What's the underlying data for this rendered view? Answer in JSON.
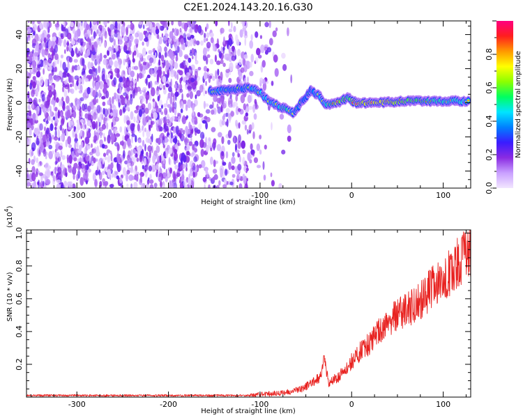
{
  "title": "C2E1.2024.143.20.16.G30",
  "chart_data": [
    {
      "type": "heatmap",
      "title": "C2E1.2024.143.20.16.G30",
      "xlabel": "Height of straight line (km)",
      "ylabel": "Frequency (Hz)",
      "xlim": [
        -355,
        130
      ],
      "ylim": [
        -50,
        48
      ],
      "x_ticks": [
        "-300",
        "-200",
        "-100",
        "0",
        "100"
      ],
      "y_ticks": [
        "-40",
        "-20",
        "0",
        "20",
        "40"
      ],
      "colorbar": {
        "label": "Normalized spectral amplitude",
        "range": [
          0.0,
          1.0
        ],
        "ticks": [
          "0.0",
          "0.2",
          "0.4",
          "0.6",
          "0.8"
        ],
        "colormap": [
          "#f2e6ff",
          "#c9a0ff",
          "#8a2be2",
          "#3a1cff",
          "#0080ff",
          "#00e5ff",
          "#00ff60",
          "#8cff00",
          "#ffff00",
          "#ff9900",
          "#ff1e1e",
          "#ff0080"
        ]
      },
      "ridge": [
        {
          "x": -155,
          "y": 7,
          "amp": 0.45
        },
        {
          "x": -145,
          "y": 7,
          "amp": 0.45
        },
        {
          "x": -125,
          "y": 8,
          "amp": 0.4
        },
        {
          "x": -112,
          "y": 9,
          "amp": 0.45
        },
        {
          "x": -100,
          "y": 6,
          "amp": 0.55
        },
        {
          "x": -90,
          "y": 1,
          "amp": 0.5
        },
        {
          "x": -80,
          "y": -2,
          "amp": 0.55
        },
        {
          "x": -70,
          "y": -4,
          "amp": 0.6
        },
        {
          "x": -63,
          "y": -6,
          "amp": 0.45
        },
        {
          "x": -55,
          "y": 0,
          "amp": 0.4
        },
        {
          "x": -45,
          "y": 7,
          "amp": 0.4
        },
        {
          "x": -35,
          "y": 4,
          "amp": 0.5
        },
        {
          "x": -28,
          "y": -1,
          "amp": 0.55
        },
        {
          "x": -15,
          "y": 0,
          "amp": 0.8
        },
        {
          "x": -5,
          "y": 3,
          "amp": 0.6
        },
        {
          "x": 5,
          "y": 0,
          "amp": 0.8
        },
        {
          "x": 30,
          "y": 0,
          "amp": 0.85
        },
        {
          "x": 60,
          "y": 1,
          "amp": 0.7
        },
        {
          "x": 90,
          "y": 1,
          "amp": 0.6
        },
        {
          "x": 128,
          "y": 1,
          "amp": 0.55
        }
      ]
    },
    {
      "type": "line",
      "xlabel": "Height of straight line (km)",
      "ylabel": "SNR (10 * v/v)",
      "y_multiplier": "(x10",
      "y_multiplier_exp": "4",
      "y_multiplier_close": ")",
      "xlim": [
        -355,
        130
      ],
      "ylim": [
        0,
        1.02
      ],
      "x_ticks": [
        "-300",
        "-200",
        "-100",
        "0",
        "100"
      ],
      "y_ticks": [
        "0.2",
        "0.4",
        "0.6",
        "0.8",
        "1.0"
      ],
      "color": "#e8211f",
      "series": [
        {
          "x": [
            -355,
            -300,
            -250,
            -200,
            -150,
            -110,
            -90,
            -70,
            -55,
            -45,
            -35,
            -30,
            -25,
            -15,
            -5,
            0,
            10,
            20,
            30,
            40,
            50,
            60,
            70,
            80,
            90,
            100,
            110,
            120,
            125,
            130
          ],
          "y": [
            0.01,
            0.01,
            0.01,
            0.01,
            0.01,
            0.01,
            0.02,
            0.03,
            0.05,
            0.08,
            0.12,
            0.22,
            0.09,
            0.12,
            0.18,
            0.22,
            0.28,
            0.33,
            0.4,
            0.46,
            0.5,
            0.53,
            0.56,
            0.62,
            0.68,
            0.72,
            0.78,
            0.85,
            0.88,
            0.88
          ]
        }
      ]
    }
  ]
}
